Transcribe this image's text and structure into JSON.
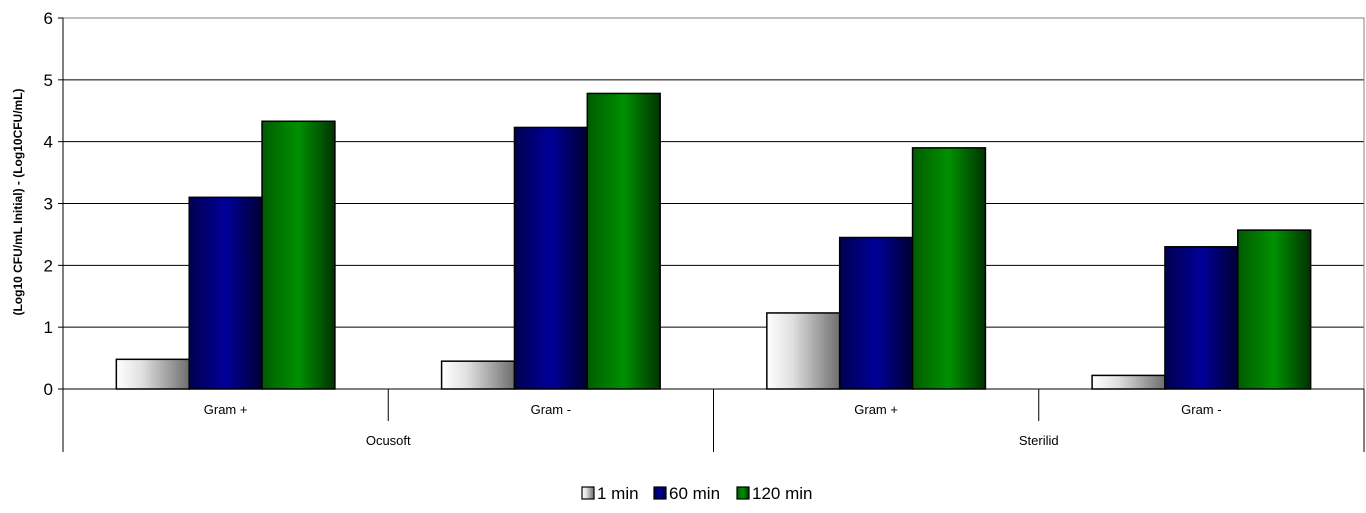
{
  "chart_data": {
    "type": "bar",
    "ylabel": "(Log10 CFU/mL Initial) - (Log10CFU/mL)",
    "ylim": [
      0,
      6
    ],
    "yticks": [
      0,
      1,
      2,
      3,
      4,
      5,
      6
    ],
    "grid": true,
    "legend_position": "bottom",
    "groups": [
      {
        "label": "Ocusoft",
        "categories": [
          "Gram +",
          "Gram -"
        ]
      },
      {
        "label": "Sterilid",
        "categories": [
          "Gram +",
          "Gram -"
        ]
      }
    ],
    "categories": [
      "Gram +",
      "Gram -",
      "Gram +",
      "Gram -"
    ],
    "series": [
      {
        "name": "1 min",
        "color": "#c0c0c0",
        "values": [
          0.48,
          0.45,
          1.23,
          0.22
        ]
      },
      {
        "name": "60 min",
        "color": "#000080",
        "values": [
          3.1,
          4.23,
          2.45,
          2.3
        ]
      },
      {
        "name": "120 min",
        "color": "#008000",
        "values": [
          4.33,
          4.78,
          3.9,
          2.57
        ]
      }
    ]
  }
}
